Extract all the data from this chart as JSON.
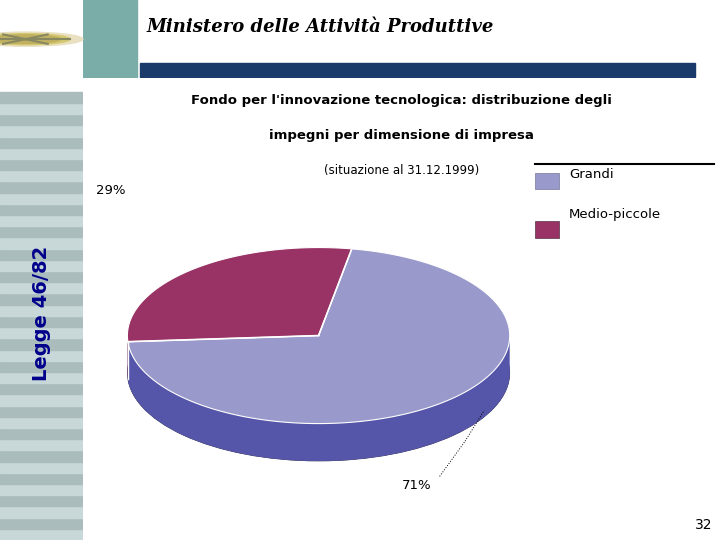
{
  "title_line1": "Fondo per l'innovazione tecnologica: distribuzione degli",
  "title_line2": "impegni per dimensione di impresa",
  "subtitle": "(situazione al 31.12.1999)",
  "slices": [
    71,
    29
  ],
  "pct_labels": [
    "71%",
    "29%"
  ],
  "colors_top": [
    "#9999CC",
    "#993366"
  ],
  "colors_side": [
    "#5555AA",
    "#661144"
  ],
  "legend_labels": [
    "Grandi",
    "Medio-piccole"
  ],
  "legend_colors": [
    "#9999CC",
    "#993366"
  ],
  "header_title": "Ministero delle Attività Produttive",
  "page_number": "32",
  "background_color": "#ffffff",
  "teal_rect_color": "#7AADA8",
  "teal_line_color": "#336B6B",
  "navy_underline": "#1A3A6B",
  "stripe_light": "#C8D8D8",
  "stripe_mid": "#AABCBC",
  "sidebar_text_color": "#00008B"
}
